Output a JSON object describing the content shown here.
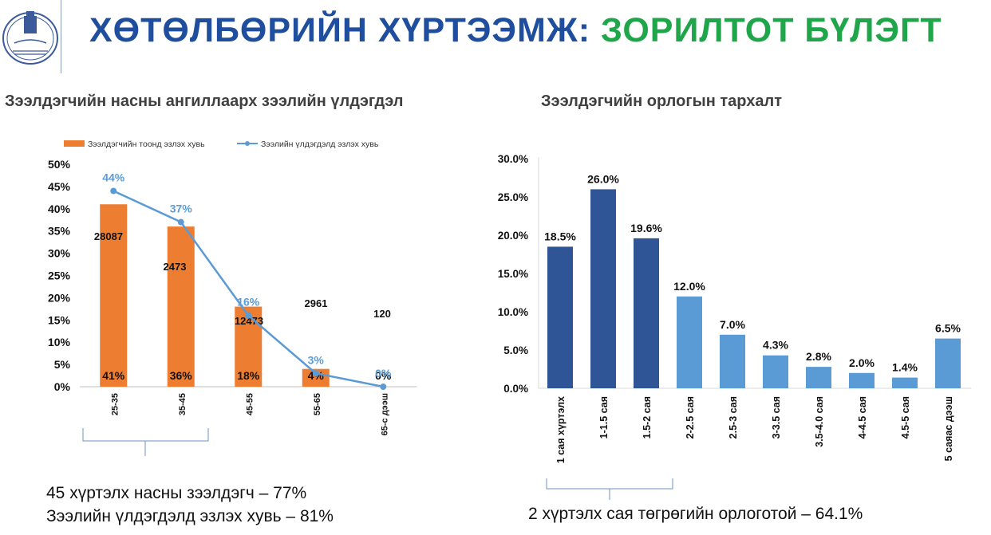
{
  "header": {
    "title_part1": "ХӨТӨЛБӨРИЙН ХҮРТЭЭМЖ:",
    "title_part2": "ЗОРИЛТОТ БҮЛЭГТ",
    "colors": {
      "title_blue": "#1f4e9e",
      "title_green": "#1fa64a"
    },
    "logo": {
      "icon": "bank-emblem-icon",
      "signature": "Mongol Bank"
    }
  },
  "left_panel": {
    "subtitle": "Зээлдэгчийн насны ангиллаарх зээлийн үлдэгдэл",
    "caption_line1": "45 хүртэлх насны зээлдэгч – 77%",
    "caption_line2": "Зээлийн үлдэгдэлд эзлэх хувь – 81%"
  },
  "right_panel": {
    "subtitle": "Зээлдэгчийн орлогын тархалт",
    "caption": "2 хүртэлх сая төгрөгийн орлоготой – 64.1%"
  },
  "chart_data": [
    {
      "type": "bar",
      "categories": [
        "25-35",
        "35-45",
        "45-55",
        "55-65",
        "65-с дээш"
      ],
      "series": [
        {
          "name": "Зээлдэгчийн тоонд эзлэх хувь",
          "kind": "bar",
          "color": "#ed7d31",
          "values": [
            41,
            36,
            18,
            4,
            0
          ],
          "labels": [
            "41%",
            "36%",
            "18%",
            "4%",
            "0%"
          ]
        },
        {
          "name": "Зээлийн үлдэгдэлд эзлэх хувь",
          "kind": "line",
          "color": "#5b9bd5",
          "values": [
            44,
            37,
            16,
            3,
            0
          ],
          "labels": [
            "44%",
            "37%",
            "16%",
            "3%",
            "0%"
          ]
        }
      ],
      "count_labels": [
        "28087",
        "2473",
        "12473",
        "2961",
        "120"
      ],
      "ylim": [
        0,
        50
      ],
      "yticks": [
        "0%",
        "5%",
        "10%",
        "15%",
        "20%",
        "25%",
        "30%",
        "35%",
        "40%",
        "45%",
        "50%"
      ],
      "legend": "top",
      "grid": false
    },
    {
      "type": "bar",
      "categories": [
        "1 сая хүртэлх",
        "1-1.5 сая",
        "1.5-2 сая",
        "2-2.5 сая",
        "2.5-3 сая",
        "3-3.5 сая",
        "3.5-4.0 сая",
        "4-4.5 сая",
        "4.5-5 сая",
        "5 саяас дээш"
      ],
      "values": [
        18.5,
        26.0,
        19.6,
        12.0,
        7.0,
        4.3,
        2.8,
        2.0,
        1.4,
        6.5
      ],
      "labels": [
        "18.5%",
        "26.0%",
        "19.6%",
        "12.0%",
        "7.0%",
        "4.3%",
        "2.8%",
        "2.0%",
        "1.4%",
        "6.5%"
      ],
      "colors": [
        "#2f5597",
        "#2f5597",
        "#2f5597",
        "#5b9bd5",
        "#5b9bd5",
        "#5b9bd5",
        "#5b9bd5",
        "#5b9bd5",
        "#5b9bd5",
        "#5b9bd5"
      ],
      "ylim": [
        0,
        30
      ],
      "yticks": [
        "0.0%",
        "5.0%",
        "10.0%",
        "15.0%",
        "20.0%",
        "25.0%",
        "30.0%"
      ],
      "grid": false
    }
  ]
}
